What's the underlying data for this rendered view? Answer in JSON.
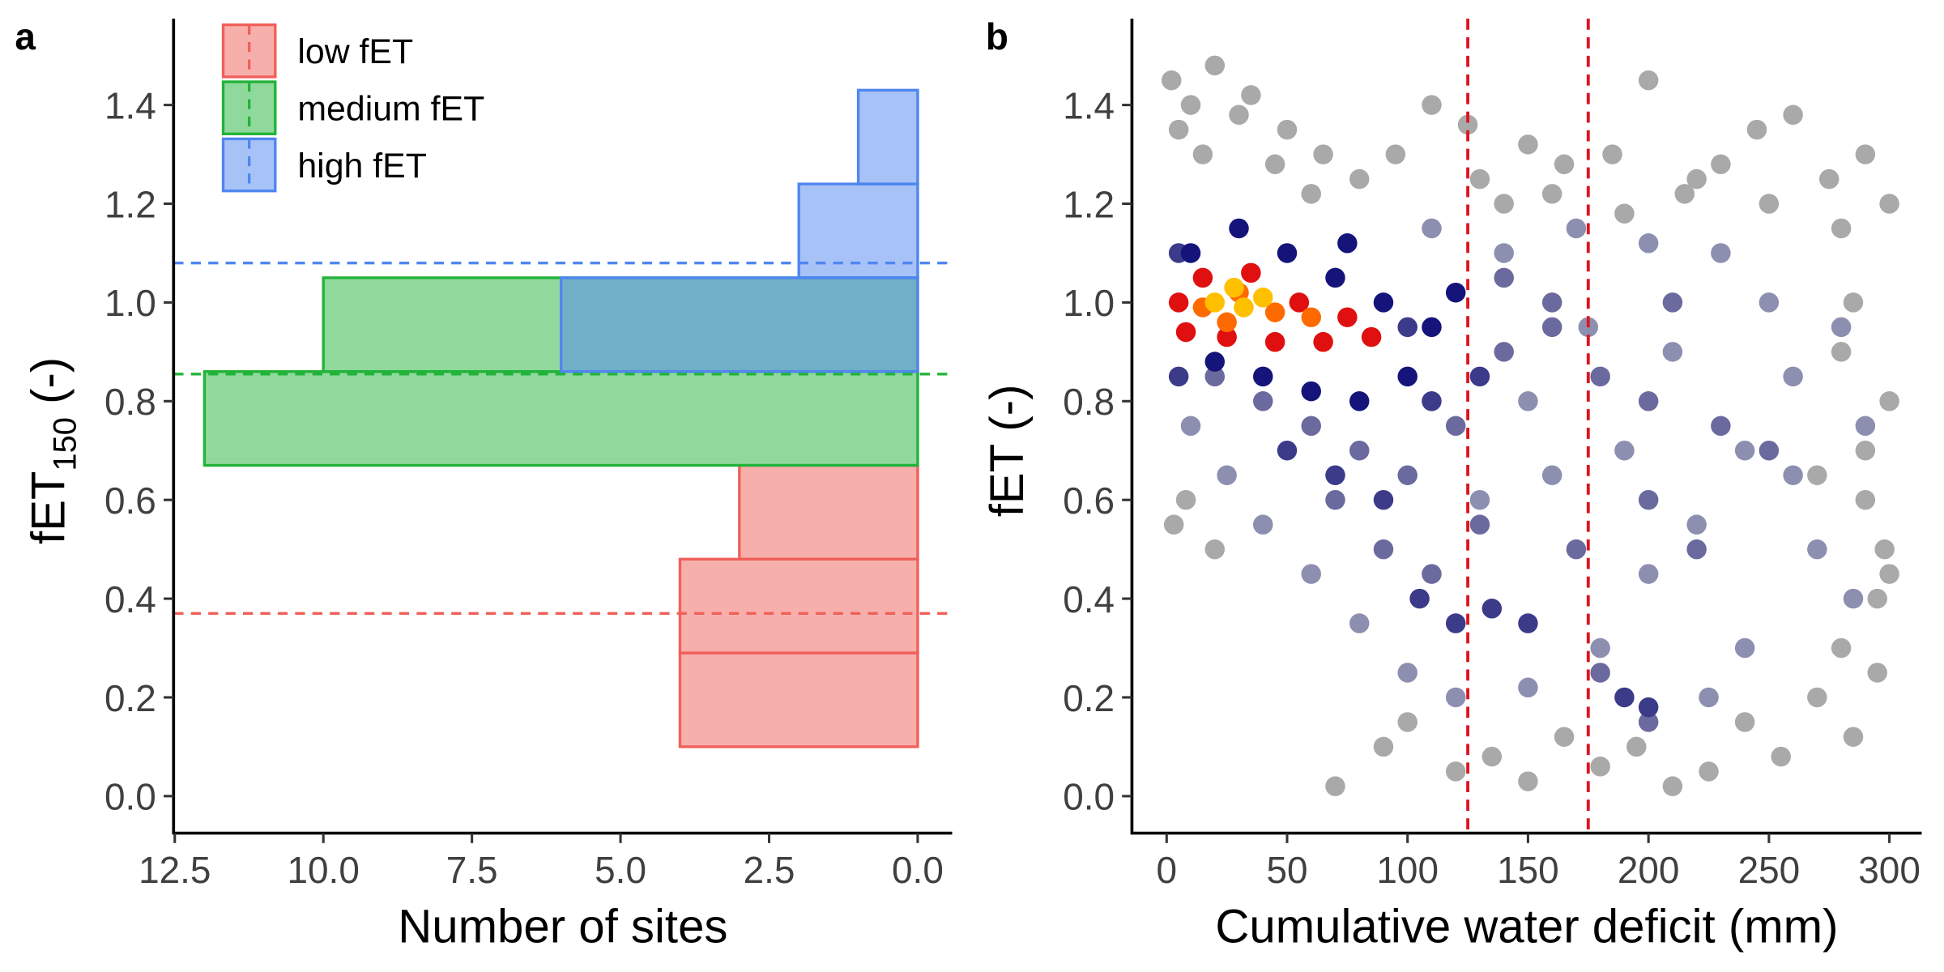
{
  "chart_data": [
    {
      "type": "histogram",
      "orientation": "horizontal",
      "panel_label": "a",
      "xlabel": "Number of sites",
      "ylabel": "fET",
      "ylabel_subscript": "150",
      "ylabel_suffix": " (-)",
      "xlim": [
        12.52,
        -0.58
      ],
      "xticks": [
        12.5,
        {
          "value": 10,
          "label": "10.0"
        },
        7.5,
        {
          "value": 5,
          "label": "5.0"
        },
        2.5,
        {
          "value": 0,
          "label": "0.0"
        }
      ],
      "ylim": [
        -0.075,
        1.575
      ],
      "yticks": [
        {
          "value": 0,
          "label": "0.0"
        },
        0.2,
        0.4,
        0.6,
        0.8,
        {
          "value": 1,
          "label": "1.0"
        },
        1.2,
        1.4
      ],
      "legend": "top-left",
      "series": [
        {
          "name": "low fET",
          "color": "#f0605a",
          "bins": [
            0.1,
            0.29,
            0.48,
            0.67
          ],
          "values": [
            4,
            4,
            3
          ]
        },
        {
          "name": "medium fET",
          "color": "#22b33a",
          "bins": [
            0.67,
            0.86,
            1.05
          ],
          "values": [
            12,
            10
          ]
        },
        {
          "name": "high fET",
          "color": "#4f86f0",
          "bins": [
            0.86,
            1.05,
            1.24,
            1.43
          ],
          "values": [
            6,
            2,
            1
          ]
        }
      ],
      "hlines": [
        {
          "value": 0.37,
          "color": "#f0605a"
        },
        {
          "value": 0.855,
          "color": "#22b33a"
        },
        {
          "value": 1.08,
          "color": "#4f86f0"
        }
      ]
    },
    {
      "type": "scatter",
      "panel_label": "b",
      "xlabel": "Cumulative water deficit (mm)",
      "ylabel": "fET (-)",
      "xlim": [
        -14.4,
        313.4
      ],
      "xticks": [
        0,
        50,
        100,
        150,
        200,
        250,
        300
      ],
      "ylim": [
        -0.075,
        1.575
      ],
      "yticks": [
        {
          "value": 0,
          "label": "0.0"
        },
        0.2,
        0.4,
        0.6,
        0.8,
        {
          "value": 1,
          "label": "1.0"
        },
        1.2,
        1.4
      ],
      "vlines": [
        {
          "value": 125,
          "color": "#e0141e"
        },
        {
          "value": 175,
          "color": "#e0141e"
        }
      ],
      "series": [
        {
          "color": "#a9a9a9",
          "x": [
            2,
            10,
            20,
            35,
            50,
            65,
            80,
            110,
            125,
            140,
            150,
            165,
            185,
            200,
            215,
            230,
            245,
            260,
            275,
            290,
            300,
            5,
            15,
            30,
            45,
            60,
            95,
            130,
            160,
            190,
            220,
            250,
            280,
            70,
            90,
            100,
            120,
            135,
            150,
            165,
            180,
            195,
            210,
            225,
            240,
            255,
            270,
            285,
            295,
            295,
            290,
            300,
            285,
            298,
            280,
            3,
            8,
            20,
            280,
            290,
            300,
            270
          ],
          "y": [
            1.45,
            1.4,
            1.48,
            1.42,
            1.35,
            1.3,
            1.25,
            1.4,
            1.36,
            1.2,
            1.32,
            1.28,
            1.3,
            1.45,
            1.22,
            1.28,
            1.35,
            1.38,
            1.25,
            1.3,
            1.2,
            1.35,
            1.3,
            1.38,
            1.28,
            1.22,
            1.3,
            1.25,
            1.22,
            1.18,
            1.25,
            1.2,
            1.15,
            0.02,
            0.1,
            0.15,
            0.05,
            0.08,
            0.03,
            0.12,
            0.06,
            0.1,
            0.02,
            0.05,
            0.15,
            0.08,
            0.2,
            0.12,
            0.25,
            0.4,
            0.6,
            0.8,
            1.0,
            0.5,
            0.9,
            0.55,
            0.6,
            0.5,
            0.3,
            0.7,
            0.45,
            0.65
          ]
        },
        {
          "color": "#8d8fb0",
          "x": [
            10,
            25,
            40,
            60,
            80,
            100,
            120,
            150,
            180,
            200,
            220,
            240,
            260,
            280,
            290,
            250,
            230,
            200,
            170,
            140,
            110,
            130,
            160,
            190,
            210,
            270,
            285,
            240,
            150,
            175,
            260,
            225
          ],
          "y": [
            0.75,
            0.65,
            0.55,
            0.45,
            0.35,
            0.25,
            0.2,
            0.22,
            0.3,
            0.45,
            0.55,
            0.7,
            0.85,
            0.95,
            0.75,
            1.0,
            1.1,
            1.12,
            1.15,
            1.1,
            1.15,
            0.6,
            0.65,
            0.7,
            0.9,
            0.5,
            0.4,
            0.3,
            0.8,
            0.95,
            0.65,
            0.2
          ]
        },
        {
          "color": "#6a6a9e",
          "x": [
            20,
            40,
            60,
            80,
            100,
            120,
            140,
            160,
            180,
            200,
            230,
            250,
            90,
            110,
            130,
            170,
            200,
            220,
            180,
            200,
            160,
            140,
            70,
            210
          ],
          "y": [
            0.85,
            0.8,
            0.75,
            0.7,
            0.65,
            0.75,
            0.9,
            0.95,
            0.85,
            0.8,
            0.75,
            0.7,
            0.5,
            0.45,
            0.55,
            0.5,
            0.6,
            0.5,
            0.25,
            0.15,
            1.0,
            1.05,
            0.6,
            1.0
          ]
        },
        {
          "color": "#3b3b8a",
          "x": [
            50,
            70,
            90,
            105,
            120,
            135,
            150,
            190,
            200,
            110,
            130,
            100,
            5,
            5
          ],
          "y": [
            0.7,
            0.65,
            0.6,
            0.4,
            0.35,
            0.38,
            0.35,
            0.2,
            0.18,
            0.8,
            0.85,
            0.95,
            0.85,
            1.1
          ]
        },
        {
          "color": "#14147a",
          "x": [
            10,
            30,
            50,
            70,
            90,
            110,
            100,
            80,
            60,
            40,
            20,
            120,
            75
          ],
          "y": [
            1.1,
            1.15,
            1.1,
            1.05,
            1.0,
            0.95,
            0.85,
            0.8,
            0.82,
            0.85,
            0.88,
            1.02,
            1.12
          ]
        },
        {
          "color": "#e01010",
          "x": [
            5,
            15,
            35,
            55,
            75,
            85,
            65,
            45,
            25,
            8
          ],
          "y": [
            1.0,
            1.05,
            1.06,
            1.0,
            0.97,
            0.93,
            0.92,
            0.92,
            0.93,
            0.94
          ]
        },
        {
          "color": "#ff6a00",
          "x": [
            15,
            30,
            45,
            60,
            25
          ],
          "y": [
            0.99,
            1.02,
            0.98,
            0.97,
            0.96
          ]
        },
        {
          "color": "#ffc000",
          "x": [
            20,
            32,
            40,
            28
          ],
          "y": [
            1.0,
            0.99,
            1.01,
            1.03
          ]
        }
      ]
    }
  ]
}
